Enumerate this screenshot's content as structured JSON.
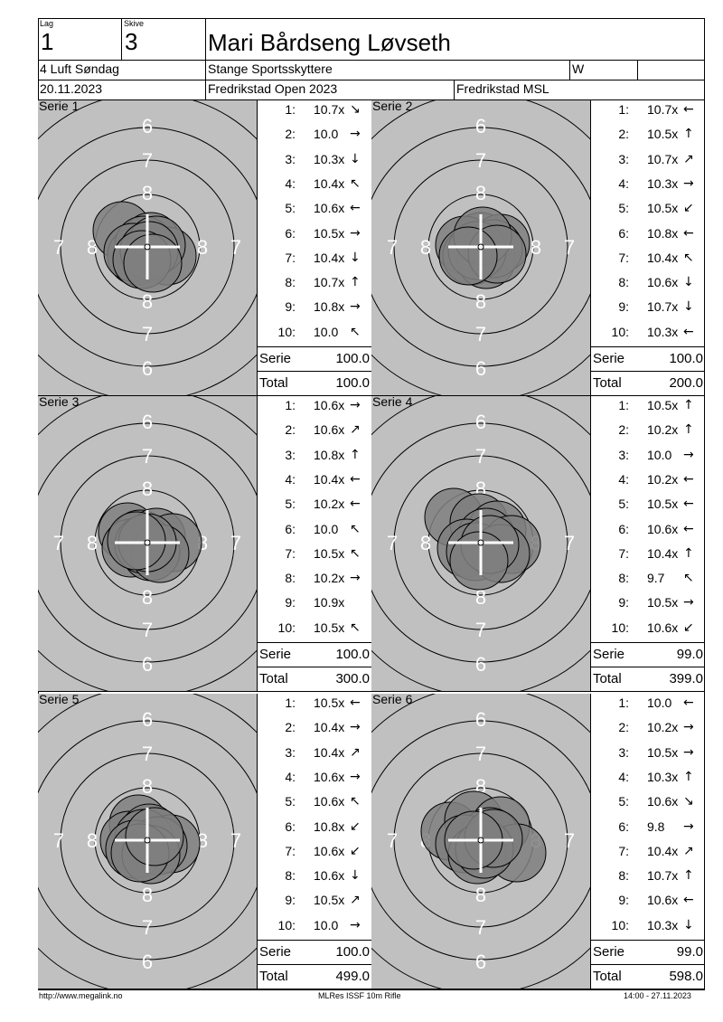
{
  "header": {
    "lag_label": "Lag",
    "lag_value": "1",
    "skive_label": "Skive",
    "skive_value": "3",
    "shooter_name": "Mari Bårdseng Løvseth",
    "class_name": "4 Luft Søndag",
    "club": "Stange Sportsskyttere",
    "club_code": "W",
    "club_extra": "",
    "date": "20.11.2023",
    "competition": "Fredrikstad Open 2023",
    "venue": "Fredrikstad MSL"
  },
  "series": [
    {
      "title": "Serie 1",
      "shots": [
        {
          "n": "1:",
          "v": "10.7x",
          "a": "↘"
        },
        {
          "n": "2:",
          "v": "10.0",
          "a": "→"
        },
        {
          "n": "3:",
          "v": "10.3x",
          "a": "↓"
        },
        {
          "n": "4:",
          "v": "10.4x",
          "a": "↖"
        },
        {
          "n": "5:",
          "v": "10.6x",
          "a": "←"
        },
        {
          "n": "6:",
          "v": "10.5x",
          "a": "→"
        },
        {
          "n": "7:",
          "v": "10.4x",
          "a": "↓"
        },
        {
          "n": "8:",
          "v": "10.7x",
          "a": "↑"
        },
        {
          "n": "9:",
          "v": "10.8x",
          "a": "→"
        },
        {
          "n": "10:",
          "v": "10.0",
          "a": "↖"
        }
      ],
      "serie_label": "Serie",
      "serie_value": "100.0",
      "total_label": "Total",
      "total_value": "100.0"
    },
    {
      "title": "Serie 2",
      "shots": [
        {
          "n": "1:",
          "v": "10.7x",
          "a": "←"
        },
        {
          "n": "2:",
          "v": "10.5x",
          "a": "↑"
        },
        {
          "n": "3:",
          "v": "10.7x",
          "a": "↗"
        },
        {
          "n": "4:",
          "v": "10.3x",
          "a": "→"
        },
        {
          "n": "5:",
          "v": "10.5x",
          "a": "↙"
        },
        {
          "n": "6:",
          "v": "10.8x",
          "a": "←"
        },
        {
          "n": "7:",
          "v": "10.4x",
          "a": "↖"
        },
        {
          "n": "8:",
          "v": "10.6x",
          "a": "↓"
        },
        {
          "n": "9:",
          "v": "10.7x",
          "a": "↓"
        },
        {
          "n": "10:",
          "v": "10.3x",
          "a": "←"
        }
      ],
      "serie_label": "Serie",
      "serie_value": "100.0",
      "total_label": "Total",
      "total_value": "200.0"
    },
    {
      "title": "Serie 3",
      "shots": [
        {
          "n": "1:",
          "v": "10.6x",
          "a": "→"
        },
        {
          "n": "2:",
          "v": "10.6x",
          "a": "↗"
        },
        {
          "n": "3:",
          "v": "10.8x",
          "a": "↑"
        },
        {
          "n": "4:",
          "v": "10.4x",
          "a": "←"
        },
        {
          "n": "5:",
          "v": "10.2x",
          "a": "←"
        },
        {
          "n": "6:",
          "v": "10.0",
          "a": "↖"
        },
        {
          "n": "7:",
          "v": "10.5x",
          "a": "↖"
        },
        {
          "n": "8:",
          "v": "10.2x",
          "a": "→"
        },
        {
          "n": "9:",
          "v": "10.9x",
          "a": ""
        },
        {
          "n": "10:",
          "v": "10.5x",
          "a": "↖"
        }
      ],
      "serie_label": "Serie",
      "serie_value": "100.0",
      "total_label": "Total",
      "total_value": "300.0"
    },
    {
      "title": "Serie 4",
      "shots": [
        {
          "n": "1:",
          "v": "10.5x",
          "a": "↑"
        },
        {
          "n": "2:",
          "v": "10.2x",
          "a": "↑"
        },
        {
          "n": "3:",
          "v": "10.0",
          "a": "→"
        },
        {
          "n": "4:",
          "v": "10.2x",
          "a": "←"
        },
        {
          "n": "5:",
          "v": "10.5x",
          "a": "←"
        },
        {
          "n": "6:",
          "v": "10.6x",
          "a": "←"
        },
        {
          "n": "7:",
          "v": "10.4x",
          "a": "↑"
        },
        {
          "n": "8:",
          "v": "9.7",
          "a": "↖"
        },
        {
          "n": "9:",
          "v": "10.5x",
          "a": "→"
        },
        {
          "n": "10:",
          "v": "10.6x",
          "a": "↙"
        }
      ],
      "serie_label": "Serie",
      "serie_value": "99.0",
      "total_label": "Total",
      "total_value": "399.0"
    },
    {
      "title": "Serie 5",
      "shots": [
        {
          "n": "1:",
          "v": "10.5x",
          "a": "←"
        },
        {
          "n": "2:",
          "v": "10.4x",
          "a": "→"
        },
        {
          "n": "3:",
          "v": "10.4x",
          "a": "↗"
        },
        {
          "n": "4:",
          "v": "10.6x",
          "a": "→"
        },
        {
          "n": "5:",
          "v": "10.6x",
          "a": "↖"
        },
        {
          "n": "6:",
          "v": "10.8x",
          "a": "↙"
        },
        {
          "n": "7:",
          "v": "10.6x",
          "a": "↙"
        },
        {
          "n": "8:",
          "v": "10.6x",
          "a": "↓"
        },
        {
          "n": "9:",
          "v": "10.5x",
          "a": "↗"
        },
        {
          "n": "10:",
          "v": "10.0",
          "a": "→"
        }
      ],
      "serie_label": "Serie",
      "serie_value": "100.0",
      "total_label": "Total",
      "total_value": "499.0"
    },
    {
      "title": "Serie 6",
      "shots": [
        {
          "n": "1:",
          "v": "10.0",
          "a": "←"
        },
        {
          "n": "2:",
          "v": "10.2x",
          "a": "→"
        },
        {
          "n": "3:",
          "v": "10.5x",
          "a": "→"
        },
        {
          "n": "4:",
          "v": "10.3x",
          "a": "↑"
        },
        {
          "n": "5:",
          "v": "10.6x",
          "a": "↘"
        },
        {
          "n": "6:",
          "v": "9.8",
          "a": "→"
        },
        {
          "n": "7:",
          "v": "10.4x",
          "a": "↗"
        },
        {
          "n": "8:",
          "v": "10.7x",
          "a": "↑"
        },
        {
          "n": "9:",
          "v": "10.6x",
          "a": "←"
        },
        {
          "n": "10:",
          "v": "10.3x",
          "a": "↓"
        }
      ],
      "serie_label": "Serie",
      "serie_value": "99.0",
      "total_label": "Total",
      "total_value": "598.0"
    }
  ],
  "target_rings": {
    "top": "6",
    "upper": "7",
    "mid": "8",
    "side_outer": "7",
    "side_inner": "8"
  },
  "footer": {
    "url": "http://www.megalink.no",
    "program": "MLRes ISSF 10m Rifle",
    "timestamp": "14:00 - 27.11.2023"
  },
  "colors": {
    "target_bg": "#c0c0c0",
    "shot_fill": "#7f7f7f",
    "ink": "#000000"
  }
}
